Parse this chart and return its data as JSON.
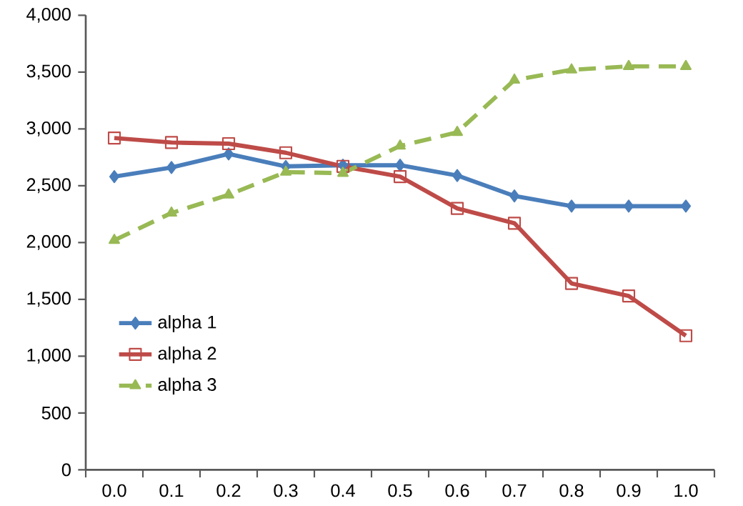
{
  "chart_data": {
    "type": "line",
    "categories": [
      "0.0",
      "0.1",
      "0.2",
      "0.3",
      "0.4",
      "0.5",
      "0.6",
      "0.7",
      "0.8",
      "0.9",
      "1.0"
    ],
    "series": [
      {
        "name": "alpha 1",
        "color": "#4a7ebb",
        "marker": "diamond",
        "line_style": "solid",
        "values": [
          2580,
          2660,
          2780,
          2670,
          2680,
          2680,
          2590,
          2410,
          2320,
          2320,
          2320
        ]
      },
      {
        "name": "alpha 2",
        "color": "#be4b48",
        "marker": "square",
        "line_style": "solid",
        "values": [
          2920,
          2880,
          2870,
          2790,
          2670,
          2580,
          2300,
          2170,
          1640,
          1530,
          1180
        ]
      },
      {
        "name": "alpha 3",
        "color": "#98b954",
        "marker": "triangle",
        "line_style": "dashed",
        "values": [
          2020,
          2260,
          2420,
          2620,
          2610,
          2850,
          2970,
          3430,
          3520,
          3550,
          3550
        ]
      }
    ],
    "ylim": [
      0,
      4000
    ],
    "yticks": [
      0,
      500,
      {
        "value": 1000,
        "label": "1,000"
      },
      {
        "value": 1500,
        "label": "1,500"
      },
      {
        "value": 2000,
        "label": "2,000"
      },
      {
        "value": 2500,
        "label": "2,500"
      },
      {
        "value": 3000,
        "label": "3,000"
      },
      {
        "value": 3500,
        "label": "3,500"
      },
      {
        "value": 4000,
        "label": "4,000"
      }
    ],
    "grid": false,
    "legend": "bottom left"
  }
}
